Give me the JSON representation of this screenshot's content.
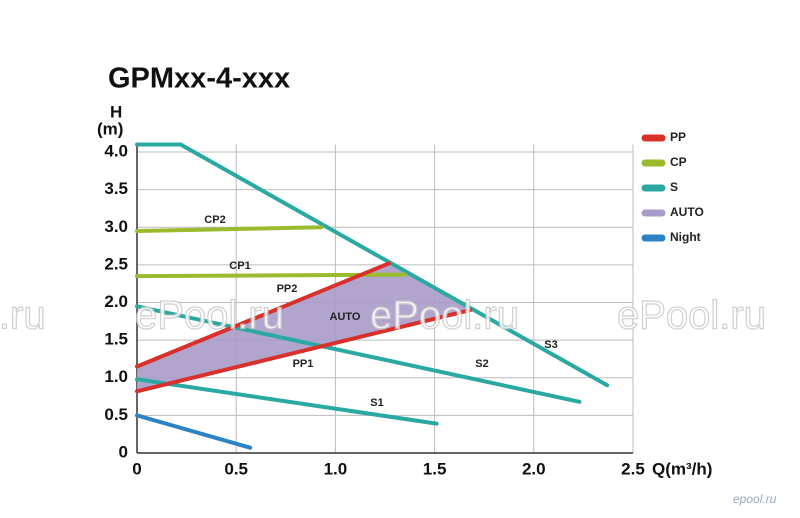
{
  "chart_data": {
    "type": "line",
    "title": "GPMxx-4-xxx",
    "y_label_top": "H",
    "y_label_unit": "(m)",
    "x_label": "Q(m³/h)",
    "xlim": [
      0,
      2.5
    ],
    "ylim": [
      0,
      4.1
    ],
    "xticks": [
      0,
      0.5,
      {
        "value": 1,
        "label": "1.0"
      },
      1.5,
      {
        "value": 2,
        "label": "2.0"
      },
      2.5
    ],
    "yticks": [
      0,
      0.5,
      {
        "value": 1,
        "label": "1.0"
      },
      1.5,
      {
        "value": 2,
        "label": "2.0"
      },
      2.5,
      {
        "value": 3,
        "label": "3.0"
      },
      3.5,
      {
        "value": 4,
        "label": "4.0"
      }
    ],
    "grid": true,
    "legend": [
      {
        "name": "PP",
        "color": "#d9302c"
      },
      {
        "name": "CP",
        "color": "#9bbb2e"
      },
      {
        "name": "S",
        "color": "#2aa9a3"
      },
      {
        "name": "AUTO",
        "color": "#a99bc9"
      },
      {
        "name": "Night",
        "color": "#2b82c4"
      }
    ],
    "legend_position": "right",
    "series": [
      {
        "label": "AUTO",
        "kind": "area",
        "color": "#a99bc9",
        "x": [
          0,
          1.27,
          1.66,
          1.68,
          0
        ],
        "values": [
          1.15,
          2.52,
          1.93,
          1.9,
          0.82
        ]
      },
      {
        "label": "S3",
        "kind": "line",
        "color": "#2aa9a3",
        "x": [
          0,
          0.22,
          2.37
        ],
        "values": [
          4.1,
          4.1,
          0.9
        ]
      },
      {
        "label": "S2",
        "kind": "line",
        "color": "#2aa9a3",
        "x": [
          0,
          2.23
        ],
        "values": [
          1.95,
          0.68
        ]
      },
      {
        "label": "S1",
        "kind": "line",
        "color": "#2aa9a3",
        "x": [
          0,
          1.51
        ],
        "values": [
          0.98,
          0.39
        ]
      },
      {
        "kind": "line",
        "color": "#2b82c4",
        "x": [
          0,
          0.57
        ],
        "values": [
          0.5,
          0.07
        ]
      },
      {
        "label": "CP2",
        "kind": "line",
        "color": "#9bbb2e",
        "x": [
          0,
          0.93
        ],
        "values": [
          2.95,
          3.0
        ]
      },
      {
        "label": "CP1",
        "kind": "line",
        "color": "#9bbb2e",
        "x": [
          0,
          1.35
        ],
        "values": [
          2.35,
          2.37
        ]
      },
      {
        "label": "PP2",
        "kind": "line",
        "color": "#d9302c",
        "x": [
          0,
          1.27
        ],
        "values": [
          1.15,
          2.52
        ]
      },
      {
        "label": "PP1",
        "kind": "line",
        "color": "#d9302c",
        "x": [
          0,
          1.68
        ],
        "values": [
          0.82,
          1.9
        ]
      }
    ],
    "watermarks": [
      "l.ru",
      "ePool.ru",
      "ePool.ru",
      "ePool.ru"
    ],
    "corner_mark": "epool.ru"
  }
}
